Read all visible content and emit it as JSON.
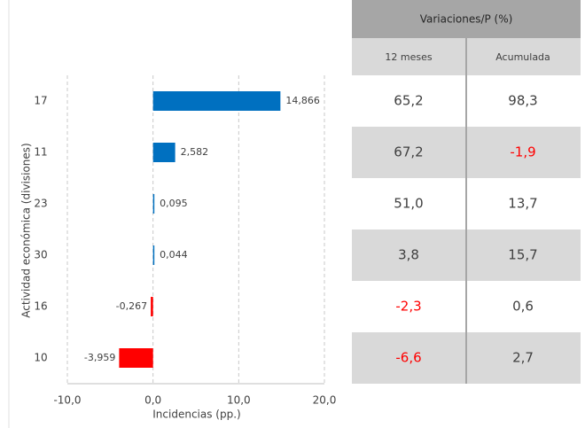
{
  "chart_data": {
    "type": "barh",
    "categories": [
      "17",
      "11",
      "23",
      "30",
      "16",
      "10"
    ],
    "values": [
      14.866,
      2.582,
      0.095,
      0.044,
      -0.267,
      -3.959
    ],
    "value_labels": [
      "14,866",
      "2,582",
      "0,095",
      "0,044",
      "-0,267",
      "-3,959"
    ],
    "colors": [
      "#0070c0",
      "#0070c0",
      "#0070c0",
      "#0070c0",
      "#ff0000",
      "#ff0000"
    ],
    "xlim": [
      -10,
      20
    ],
    "xticks": [
      {
        "value": -10,
        "label": "-10,0"
      },
      {
        "value": 0,
        "label": "0,0"
      },
      {
        "value": 10,
        "label": "10,0"
      },
      {
        "value": 20,
        "label": "20,0"
      }
    ],
    "xlabel": "Incidencias (pp.)",
    "ylabel": "Actividad económica (divisiones)",
    "grid": true
  },
  "table": {
    "title": "Variaciones/P (%)",
    "columns": [
      "12 meses",
      "Acumulada"
    ],
    "rows": [
      [
        "65,2",
        "98,3"
      ],
      [
        "67,2",
        "-1,9"
      ],
      [
        "51,0",
        "13,7"
      ],
      [
        "3,8",
        "15,7"
      ],
      [
        "-2,3",
        "0,6"
      ],
      [
        "-6,6",
        "2,7"
      ]
    ],
    "negative_color": "#ff0000"
  }
}
